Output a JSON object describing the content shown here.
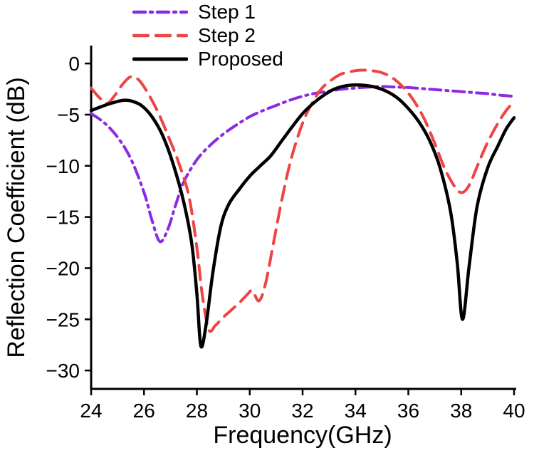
{
  "figure": {
    "background": "#ffffff"
  },
  "chart_data": {
    "type": "line",
    "title": "",
    "xlabel": "Frequency(GHz)",
    "ylabel": "Reflection Coefficient (dB)",
    "xlim": [
      24,
      40
    ],
    "ylim": [
      -31.8,
      1.75
    ],
    "x_ticks": [
      24,
      26,
      28,
      30,
      32,
      34,
      36,
      38,
      40
    ],
    "x_tick_labels": [
      "24",
      "26",
      "28",
      "30",
      "32",
      "34",
      "36",
      "38",
      "40"
    ],
    "y_ticks": [
      0,
      -5,
      -10,
      -15,
      -20,
      -25,
      -30
    ],
    "y_tick_labels": [
      "0",
      "−5",
      "−10",
      "−15",
      "−20",
      "−25",
      "−30"
    ],
    "grid": false,
    "legend_position": "top-left",
    "series": [
      {
        "name": "Step 1",
        "color": "#8a2be2",
        "style": "dash-dot",
        "dash": "16 7 3 7",
        "width": 4,
        "points": [
          [
            24,
            -4.9
          ],
          [
            24.5,
            -5.8
          ],
          [
            25,
            -7.2
          ],
          [
            25.5,
            -9.3
          ],
          [
            26,
            -12.6
          ],
          [
            26.3,
            -15.3
          ],
          [
            26.6,
            -17.4
          ],
          [
            26.9,
            -16.2
          ],
          [
            27.2,
            -13.8
          ],
          [
            27.5,
            -11.6
          ],
          [
            28,
            -9.4
          ],
          [
            28.5,
            -8.0
          ],
          [
            29,
            -6.9
          ],
          [
            29.5,
            -6.0
          ],
          [
            30,
            -5.2
          ],
          [
            30.5,
            -4.6
          ],
          [
            31,
            -4.1
          ],
          [
            31.5,
            -3.6
          ],
          [
            32,
            -3.2
          ],
          [
            32.5,
            -2.9
          ],
          [
            33,
            -2.7
          ],
          [
            33.5,
            -2.5
          ],
          [
            34,
            -2.4
          ],
          [
            34.5,
            -2.3
          ],
          [
            35,
            -2.25
          ],
          [
            35.5,
            -2.3
          ],
          [
            36,
            -2.35
          ],
          [
            36.5,
            -2.45
          ],
          [
            37,
            -2.55
          ],
          [
            37.5,
            -2.65
          ],
          [
            38,
            -2.75
          ],
          [
            38.5,
            -2.85
          ],
          [
            39,
            -2.95
          ],
          [
            39.5,
            -3.1
          ],
          [
            40,
            -3.2
          ]
        ]
      },
      {
        "name": "Step 2",
        "color": "#ee4444",
        "style": "dashed",
        "dash": "20 11",
        "width": 4,
        "points": [
          [
            24,
            -2.4
          ],
          [
            24.3,
            -3.3
          ],
          [
            24.6,
            -3.9
          ],
          [
            24.9,
            -3.1
          ],
          [
            25.2,
            -2.0
          ],
          [
            25.5,
            -1.3
          ],
          [
            25.8,
            -1.6
          ],
          [
            26.1,
            -2.7
          ],
          [
            26.5,
            -4.6
          ],
          [
            26.9,
            -7.0
          ],
          [
            27.3,
            -9.6
          ],
          [
            27.7,
            -13.0
          ],
          [
            28.0,
            -18.0
          ],
          [
            28.2,
            -22.5
          ],
          [
            28.45,
            -26.0
          ],
          [
            28.7,
            -25.6
          ],
          [
            29.0,
            -24.8
          ],
          [
            29.3,
            -24.1
          ],
          [
            29.6,
            -23.4
          ],
          [
            29.9,
            -22.6
          ],
          [
            30.1,
            -22.2
          ],
          [
            30.35,
            -23.2
          ],
          [
            30.6,
            -21.5
          ],
          [
            30.9,
            -17.5
          ],
          [
            31.2,
            -13.5
          ],
          [
            31.5,
            -10.0
          ],
          [
            31.8,
            -7.3
          ],
          [
            32.1,
            -5.2
          ],
          [
            32.4,
            -3.7
          ],
          [
            32.7,
            -2.5
          ],
          [
            33.0,
            -1.8
          ],
          [
            33.4,
            -1.1
          ],
          [
            33.8,
            -0.8
          ],
          [
            34.2,
            -0.65
          ],
          [
            34.6,
            -0.7
          ],
          [
            35.0,
            -0.9
          ],
          [
            35.4,
            -1.4
          ],
          [
            35.8,
            -2.3
          ],
          [
            36.2,
            -3.6
          ],
          [
            36.6,
            -5.4
          ],
          [
            37.0,
            -7.8
          ],
          [
            37.4,
            -10.4
          ],
          [
            37.8,
            -12.2
          ],
          [
            38.05,
            -12.6
          ],
          [
            38.3,
            -11.9
          ],
          [
            38.6,
            -10.1
          ],
          [
            39.0,
            -7.7
          ],
          [
            39.4,
            -5.8
          ],
          [
            39.7,
            -4.6
          ],
          [
            40,
            -3.7
          ]
        ]
      },
      {
        "name": "Proposed",
        "color": "#000000",
        "style": "solid",
        "dash": "",
        "width": 4.5,
        "points": [
          [
            24,
            -4.6
          ],
          [
            24.4,
            -4.2
          ],
          [
            24.8,
            -3.85
          ],
          [
            25.2,
            -3.6
          ],
          [
            25.5,
            -3.65
          ],
          [
            25.9,
            -4.1
          ],
          [
            26.3,
            -5.2
          ],
          [
            26.7,
            -7.0
          ],
          [
            27.1,
            -9.8
          ],
          [
            27.5,
            -13.5
          ],
          [
            27.8,
            -17.5
          ],
          [
            28.0,
            -22.5
          ],
          [
            28.15,
            -27.6
          ],
          [
            28.35,
            -25.5
          ],
          [
            28.6,
            -20.5
          ],
          [
            28.9,
            -16.0
          ],
          [
            29.2,
            -13.8
          ],
          [
            29.6,
            -12.3
          ],
          [
            30.0,
            -11.0
          ],
          [
            30.4,
            -10.0
          ],
          [
            30.8,
            -9.0
          ],
          [
            31.2,
            -7.6
          ],
          [
            31.6,
            -6.2
          ],
          [
            32.0,
            -4.9
          ],
          [
            32.4,
            -3.9
          ],
          [
            32.8,
            -3.1
          ],
          [
            33.2,
            -2.5
          ],
          [
            33.6,
            -2.2
          ],
          [
            34.0,
            -2.1
          ],
          [
            34.4,
            -2.15
          ],
          [
            34.8,
            -2.35
          ],
          [
            35.2,
            -2.75
          ],
          [
            35.6,
            -3.4
          ],
          [
            36.0,
            -4.4
          ],
          [
            36.4,
            -5.7
          ],
          [
            36.8,
            -7.5
          ],
          [
            37.2,
            -10.2
          ],
          [
            37.6,
            -14.5
          ],
          [
            37.85,
            -19.5
          ],
          [
            38.05,
            -25.0
          ],
          [
            38.3,
            -19.8
          ],
          [
            38.6,
            -14.0
          ],
          [
            39.0,
            -10.2
          ],
          [
            39.4,
            -8.0
          ],
          [
            39.7,
            -6.4
          ],
          [
            40,
            -5.3
          ]
        ]
      }
    ]
  }
}
